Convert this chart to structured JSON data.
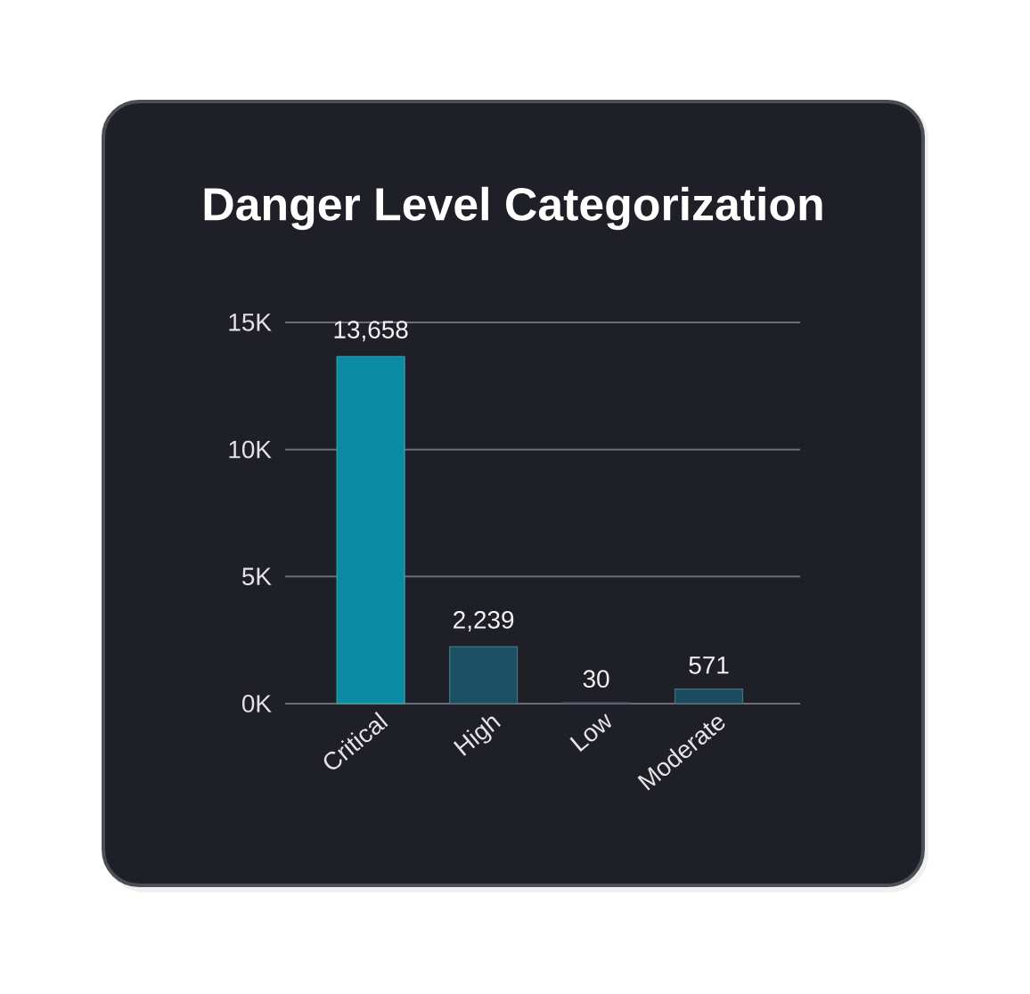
{
  "chart_data": {
    "type": "bar",
    "title": "Danger Level Categorization",
    "categories": [
      "Critical",
      "High",
      "Low",
      "Moderate"
    ],
    "values": [
      13658,
      2239,
      30,
      571
    ],
    "colors": [
      "#0a8aa3",
      "#1b5063",
      "#1d3b4c",
      "#1b4b5f"
    ],
    "value_labels": [
      "13,658",
      "2,239",
      "30",
      "571"
    ],
    "ylim": [
      0,
      15000
    ],
    "yticks": [
      {
        "value": 0,
        "label": "0K"
      },
      {
        "value": 5000,
        "label": "5K"
      },
      {
        "value": 10000,
        "label": "10K"
      },
      {
        "value": 15000,
        "label": "15K"
      }
    ],
    "grid": "y"
  }
}
